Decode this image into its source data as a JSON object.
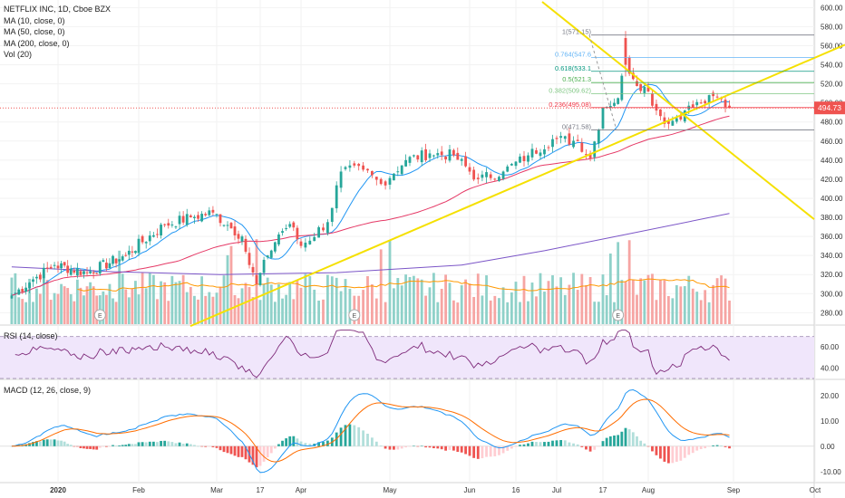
{
  "legend": {
    "symbol": "NETFLIX INC, 1D, Cboe BZX",
    "ma10": "MA (10, close, 0)",
    "ma50": "MA (50, close, 0)",
    "ma200": "MA (200, close, 0)",
    "vol": "Vol (20)"
  },
  "rsi_label": "RSI (14, close)",
  "macd_label": "MACD (12, 26, close, 9)",
  "last_price": "494.73",
  "colors": {
    "up": "#26a69a",
    "down": "#ef5350",
    "up_vol": "#8fd1c9",
    "down_vol": "#f6a5a3",
    "ma10": "#2196f3",
    "ma50": "#e53966",
    "ma200": "#7b55c7",
    "volma": "#ff9800",
    "trend": "#f5e000",
    "rsi": "#7e2a7a",
    "rsi_band": "#f0e6fb",
    "macd": "#2196f3",
    "signal": "#ff6d00"
  },
  "chart_data": [
    {
      "type": "candlestick",
      "title": "NETFLIX INC, 1D, Cboe BZX",
      "x_tick_labels": [
        "2020",
        "Feb",
        "Mar",
        "17",
        "Apr",
        "May",
        "Jun",
        "16",
        "Jul",
        "17",
        "Aug",
        "Sep",
        "Oct"
      ],
      "y_tick_labels": [
        "600.00",
        "580.00",
        "560.00",
        "540.00",
        "520.00",
        "500.00",
        "480.00",
        "460.00",
        "440.00",
        "420.00",
        "400.00",
        "380.00",
        "360.00",
        "340.00",
        "320.00",
        "300.00",
        "280.00"
      ],
      "ylim": [
        268,
        606
      ],
      "last_price": 494.73,
      "close_anchors": [
        [
          0,
          298
        ],
        [
          6,
          315
        ],
        [
          12,
          330
        ],
        [
          22,
          322
        ],
        [
          34,
          340
        ],
        [
          45,
          372
        ],
        [
          52,
          380
        ],
        [
          58,
          385
        ],
        [
          62,
          372
        ],
        [
          66,
          360
        ],
        [
          68,
          330
        ],
        [
          70,
          310
        ],
        [
          73,
          340
        ],
        [
          76,
          362
        ],
        [
          79,
          373
        ],
        [
          82,
          350
        ],
        [
          88,
          375
        ],
        [
          91,
          428
        ],
        [
          96,
          430
        ],
        [
          100,
          415
        ],
        [
          106,
          440
        ],
        [
          112,
          447
        ],
        [
          118,
          445
        ],
        [
          124,
          420
        ],
        [
          130,
          428
        ],
        [
          136,
          445
        ],
        [
          142,
          462
        ],
        [
          148,
          460
        ],
        [
          151,
          442
        ],
        [
          154,
          495
        ],
        [
          158,
          505
        ],
        [
          160,
          545
        ],
        [
          162,
          525
        ],
        [
          166,
          512
        ],
        [
          168,
          492
        ],
        [
          171,
          478
        ],
        [
          175,
          492
        ],
        [
          179,
          500
        ],
        [
          183,
          506
        ],
        [
          186,
          494.73
        ]
      ],
      "fib_levels": [
        {
          "label": "1(571.15)",
          "price": 571.15
        },
        {
          "label": "0.764(547.6",
          "price": 547.6
        },
        {
          "label": "0.618(533.1",
          "price": 533.1
        },
        {
          "label": "0.5(521.3",
          "price": 521.3
        },
        {
          "label": "0.382(509.62)",
          "price": 509.62
        },
        {
          "label": "0.236(495.08)",
          "price": 495.08
        },
        {
          "label": "0(471.58)",
          "price": 471.58
        }
      ],
      "earnings_markers": [
        "E",
        "E",
        "E"
      ]
    },
    {
      "type": "line",
      "title": "RSI (14, close)",
      "y_tick_labels": [
        "60.00",
        "40.00"
      ],
      "ylim": [
        30,
        80
      ],
      "bands": [
        70,
        30
      ]
    },
    {
      "type": "line",
      "title": "MACD (12, 26, close, 9)",
      "y_tick_labels": [
        "20.00",
        "10.00",
        "0.00",
        "-10.00"
      ],
      "ylim": [
        -14,
        26
      ]
    }
  ]
}
